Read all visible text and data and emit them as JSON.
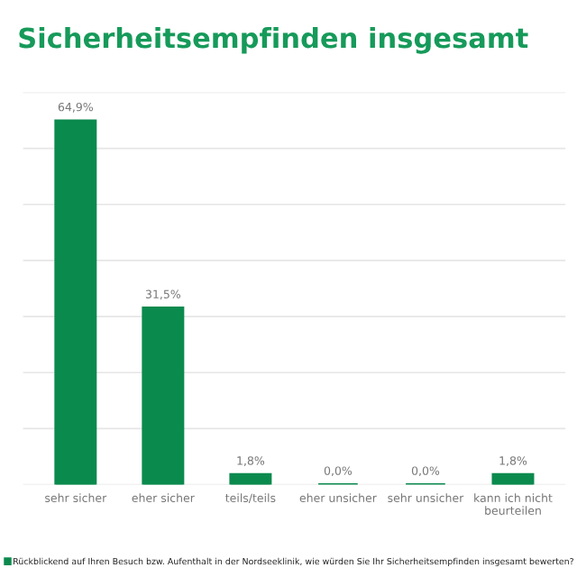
{
  "chart_data": {
    "type": "bar",
    "title": "Sicherheitsempfinden insgesamt",
    "categories": [
      "sehr sicher",
      "eher sicher",
      "teils/teils",
      "eher unsicher",
      "sehr unsicher",
      "kann ich nicht\nbeurteilen"
    ],
    "series": [
      {
        "name": "Rückblickend auf Ihren Besuch bzw. Aufenthalt in der Nordseeklinik, wie würden Sie Ihr Sicherheitsempfinden insgesamt bewerten?",
        "color": "#0b8a4e",
        "values": [
          64.9,
          31.5,
          1.8,
          0.0,
          0.0,
          1.8
        ],
        "value_labels": [
          "64,9%",
          "31,5%",
          "1,8%",
          "0,0%",
          "0,0%",
          "1,8%"
        ]
      }
    ],
    "ylim": [
      0,
      70
    ],
    "yticks": [
      {
        "value": 0,
        "label": null
      },
      {
        "value": 10,
        "label": null
      },
      {
        "value": 20,
        "label": null
      },
      {
        "value": 30,
        "label": null
      },
      {
        "value": 40,
        "label": null
      },
      {
        "value": 50,
        "label": null
      },
      {
        "value": 60,
        "label": null
      },
      {
        "value": 70,
        "label": null
      }
    ],
    "tick_labels": "x",
    "grid": "y",
    "legend": "bottom"
  }
}
